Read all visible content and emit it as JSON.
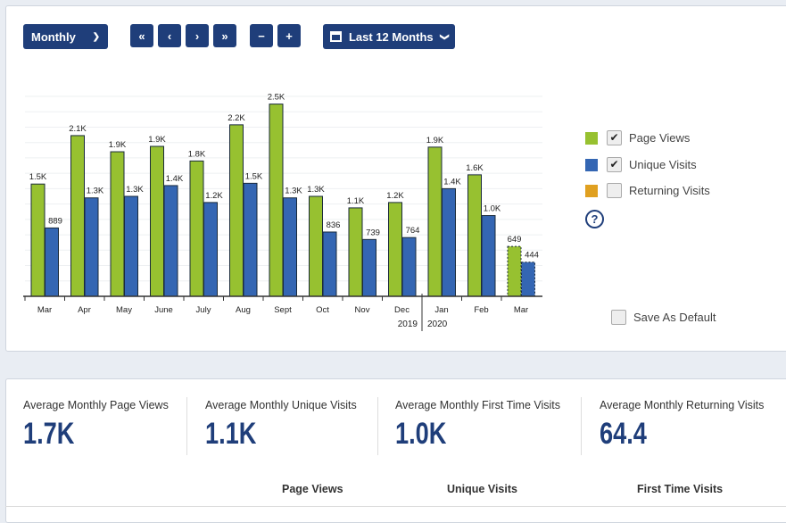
{
  "toolbar": {
    "period": "Monthly",
    "first": "«",
    "prev": "‹",
    "next": "›",
    "last": "»",
    "zoom_out": "−",
    "zoom_in": "+",
    "range": "Last 12 Months"
  },
  "legend": {
    "items": [
      {
        "label": "Page Views",
        "color": "#97c130",
        "checked": true
      },
      {
        "label": "Unique Visits",
        "color": "#3466b3",
        "checked": true
      },
      {
        "label": "Returning Visits",
        "color": "#e0a020",
        "checked": false
      }
    ],
    "help": "?",
    "save_default": "Save As Default"
  },
  "chart_data": {
    "type": "bar",
    "categories": [
      "Mar",
      "Apr",
      "May",
      "June",
      "July",
      "Aug",
      "Sept",
      "Oct",
      "Nov",
      "Dec",
      "Jan",
      "Feb",
      "Mar"
    ],
    "years": [
      "2019",
      "2020"
    ],
    "ylim": [
      0,
      2600
    ],
    "grid": true,
    "series": [
      {
        "name": "Page Views",
        "color": "#97c130",
        "values": [
          1460,
          2090,
          1880,
          1950,
          1760,
          2230,
          2500,
          1300,
          1150,
          1220,
          1940,
          1580,
          649
        ],
        "labels": [
          "1.5K",
          "2.1K",
          "1.9K",
          "1.9K",
          "1.8K",
          "2.2K",
          "2.5K",
          "1.3K",
          "1.1K",
          "1.2K",
          "1.9K",
          "1.6K",
          "649"
        ]
      },
      {
        "name": "Unique Visits",
        "color": "#3466b3",
        "values": [
          889,
          1280,
          1300,
          1440,
          1220,
          1470,
          1280,
          836,
          739,
          764,
          1400,
          1050,
          444
        ],
        "labels": [
          "889",
          "1.3K",
          "1.3K",
          "1.4K",
          "1.2K",
          "1.5K",
          "1.3K",
          "836",
          "739",
          "764",
          "1.4K",
          "1.0K",
          "444"
        ]
      }
    ]
  },
  "stats": [
    {
      "label": "Average Monthly Page Views",
      "value": "1.7K"
    },
    {
      "label": "Average Monthly Unique Visits",
      "value": "1.1K"
    },
    {
      "label": "Average Monthly First Time Visits",
      "value": "1.0K"
    },
    {
      "label": "Average Monthly Returning Visits",
      "value": "64.4"
    }
  ],
  "table": {
    "columns": [
      "Page Views",
      "Unique Visits",
      "First Time Visits"
    ]
  }
}
